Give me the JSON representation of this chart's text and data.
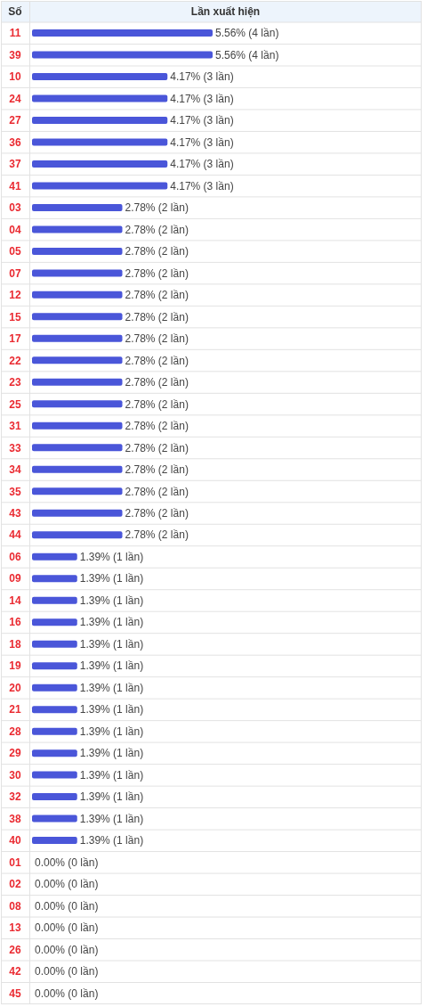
{
  "chart_data": {
    "type": "bar",
    "orientation": "horizontal",
    "xlabel": "Lần xuất hiện",
    "ylabel": "Số",
    "categories": [
      "11",
      "39",
      "10",
      "24",
      "27",
      "36",
      "37",
      "41",
      "03",
      "04",
      "05",
      "07",
      "12",
      "15",
      "17",
      "22",
      "23",
      "25",
      "31",
      "33",
      "34",
      "35",
      "43",
      "44",
      "06",
      "09",
      "14",
      "16",
      "18",
      "19",
      "20",
      "21",
      "28",
      "29",
      "30",
      "32",
      "38",
      "40",
      "01",
      "02",
      "08",
      "13",
      "26",
      "42",
      "45"
    ],
    "values": [
      5.56,
      5.56,
      4.17,
      4.17,
      4.17,
      4.17,
      4.17,
      4.17,
      2.78,
      2.78,
      2.78,
      2.78,
      2.78,
      2.78,
      2.78,
      2.78,
      2.78,
      2.78,
      2.78,
      2.78,
      2.78,
      2.78,
      2.78,
      2.78,
      1.39,
      1.39,
      1.39,
      1.39,
      1.39,
      1.39,
      1.39,
      1.39,
      1.39,
      1.39,
      1.39,
      1.39,
      1.39,
      1.39,
      0,
      0,
      0,
      0,
      0,
      0,
      0
    ],
    "value_labels": [
      "5.56% (4 lần)",
      "5.56% (4 lần)",
      "4.17% (3 lần)",
      "4.17% (3 lần)",
      "4.17% (3 lần)",
      "4.17% (3 lần)",
      "4.17% (3 lần)",
      "4.17% (3 lần)",
      "2.78% (2 lần)",
      "2.78% (2 lần)",
      "2.78% (2 lần)",
      "2.78% (2 lần)",
      "2.78% (2 lần)",
      "2.78% (2 lần)",
      "2.78% (2 lần)",
      "2.78% (2 lần)",
      "2.78% (2 lần)",
      "2.78% (2 lần)",
      "2.78% (2 lần)",
      "2.78% (2 lần)",
      "2.78% (2 lần)",
      "2.78% (2 lần)",
      "2.78% (2 lần)",
      "2.78% (2 lần)",
      "1.39% (1 lần)",
      "1.39% (1 lần)",
      "1.39% (1 lần)",
      "1.39% (1 lần)",
      "1.39% (1 lần)",
      "1.39% (1 lần)",
      "1.39% (1 lần)",
      "1.39% (1 lần)",
      "1.39% (1 lần)",
      "1.39% (1 lần)",
      "1.39% (1 lần)",
      "1.39% (1 lần)",
      "1.39% (1 lần)",
      "1.39% (1 lần)",
      "0.00% (0 lần)",
      "0.00% (0 lần)",
      "0.00% (0 lần)",
      "0.00% (0 lần)",
      "0.00% (0 lần)",
      "0.00% (0 lần)",
      "0.00% (0 lần)"
    ],
    "color": "#4a56d9",
    "grid": "y"
  }
}
